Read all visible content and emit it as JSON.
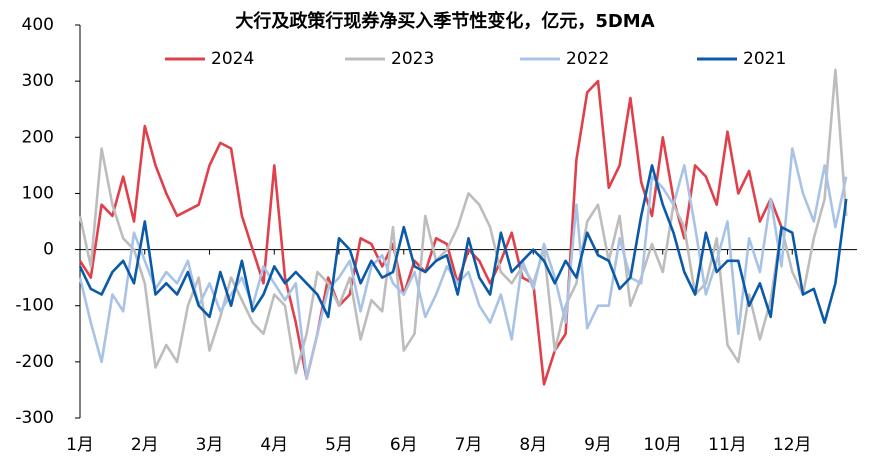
{
  "chart_data": {
    "type": "line",
    "title": "大行及政策行现券净买入季节性变化，亿元，5DMA",
    "categories": [
      "1月",
      null,
      null,
      null,
      null,
      null,
      "2月",
      null,
      null,
      null,
      null,
      null,
      "3月",
      null,
      null,
      null,
      null,
      null,
      "4月",
      null,
      null,
      null,
      null,
      null,
      "5月",
      null,
      null,
      null,
      null,
      null,
      "6月",
      null,
      null,
      null,
      null,
      null,
      "7月",
      null,
      null,
      null,
      null,
      null,
      "8月",
      null,
      null,
      null,
      null,
      null,
      "9月",
      null,
      null,
      null,
      null,
      null,
      "10月",
      null,
      null,
      null,
      null,
      null,
      "11月",
      null,
      null,
      null,
      null,
      null,
      "12月",
      null,
      null,
      null,
      null,
      null
    ],
    "ylim": [
      -300,
      400
    ],
    "yticks": [
      -300,
      -200,
      -100,
      0,
      100,
      200,
      300,
      400
    ],
    "grid": false,
    "legend": "top",
    "series": [
      {
        "name": "2024",
        "color": "#e0404a",
        "values": [
          -20,
          -50,
          80,
          60,
          130,
          50,
          220,
          150,
          100,
          60,
          70,
          80,
          150,
          190,
          180,
          60,
          0,
          -60,
          150,
          -50,
          -130,
          -230,
          -150,
          -50,
          -100,
          -80,
          20,
          10,
          -30,
          10,
          -80,
          -20,
          -40,
          20,
          10,
          -60,
          0,
          -20,
          -60,
          -20,
          30,
          -50,
          -60,
          -240,
          -180,
          -150,
          160,
          280,
          300,
          110,
          150,
          270,
          120,
          60,
          200,
          90,
          20,
          150,
          130,
          80,
          210,
          100,
          140,
          50,
          90,
          40,
          null,
          null,
          null,
          null,
          null,
          null
        ]
      },
      {
        "name": "2023",
        "color": "#bdbdbd",
        "values": [
          60,
          -30,
          180,
          80,
          20,
          0,
          -60,
          -210,
          -170,
          -200,
          -100,
          -50,
          -180,
          -120,
          -50,
          -90,
          -130,
          -150,
          -80,
          -100,
          -220,
          -150,
          -40,
          -60,
          -100,
          -50,
          -160,
          -90,
          -110,
          40,
          -180,
          -150,
          60,
          -20,
          0,
          40,
          100,
          80,
          40,
          -40,
          -60,
          -30,
          -60,
          0,
          -180,
          -100,
          -60,
          50,
          80,
          -20,
          60,
          -100,
          -50,
          10,
          -40,
          80,
          40,
          -80,
          -60,
          20,
          -170,
          -200,
          -80,
          -160,
          -90,
          40,
          -40,
          -80,
          20,
          90,
          320,
          60
        ]
      },
      {
        "name": "2022",
        "color": "#a9c3e6",
        "values": [
          -50,
          -130,
          -200,
          -80,
          -110,
          30,
          -20,
          -70,
          -40,
          -60,
          -20,
          -100,
          -60,
          -110,
          -80,
          -50,
          -100,
          -30,
          -60,
          -90,
          -60,
          -230,
          -150,
          -70,
          -50,
          -20,
          -110,
          -30,
          -10,
          -60,
          -80,
          -40,
          -120,
          -80,
          -30,
          -60,
          -40,
          -100,
          -130,
          -80,
          -160,
          -20,
          -70,
          10,
          -50,
          -130,
          80,
          -140,
          -100,
          -100,
          20,
          -50,
          -60,
          130,
          110,
          80,
          150,
          40,
          -80,
          -20,
          50,
          -150,
          20,
          -40,
          90,
          -30,
          180,
          100,
          50,
          150,
          40,
          130
        ]
      },
      {
        "name": "2021",
        "color": "#0a5aa8",
        "values": [
          -30,
          -70,
          -80,
          -40,
          -20,
          -60,
          50,
          -80,
          -60,
          -80,
          -40,
          -100,
          -120,
          -40,
          -100,
          -20,
          -110,
          -80,
          -30,
          -60,
          -40,
          -60,
          -80,
          -120,
          20,
          0,
          -60,
          -20,
          -50,
          -40,
          40,
          -30,
          -40,
          -20,
          -10,
          -80,
          20,
          -50,
          -80,
          30,
          -40,
          -20,
          0,
          -20,
          -60,
          -20,
          -50,
          30,
          -10,
          -20,
          -70,
          -50,
          60,
          150,
          80,
          30,
          -40,
          -80,
          30,
          -40,
          -20,
          -20,
          -100,
          -60,
          -120,
          40,
          30,
          -80,
          -70,
          -130,
          -60,
          90
        ]
      }
    ]
  }
}
